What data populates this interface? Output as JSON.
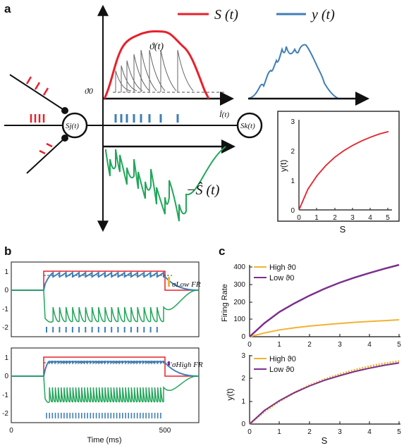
{
  "colors": {
    "red": "#e8202a",
    "blue": "#3f7eb6",
    "green": "#22a65a",
    "orange": "#f2b233",
    "purple": "#7b2f8c",
    "black": "#111111"
  },
  "panel_a": {
    "label": "a",
    "legend_S": "S (t)",
    "legend_y": "y (t)",
    "theta_t": "ϑ(t)",
    "theta0": "ϑ0",
    "neuron_j": "Sj(t)",
    "neuron_k": "Sk(t)",
    "input_current": "Î(t)",
    "neg_S_hat": "−Ŝ (t)",
    "inset": {
      "ylabel": "y(t)",
      "xlabel": "S",
      "xticks": [
        "0",
        "1",
        "2",
        "3",
        "4",
        "5"
      ],
      "yticks": [
        "0",
        "1",
        "2",
        "3"
      ]
    }
  },
  "panel_b": {
    "label": "b",
    "yticks": [
      "1",
      "0",
      "-1",
      "-2"
    ],
    "sigma_low": "σLow FR",
    "sigma_high": "σHigh FR",
    "xticks": [
      "0",
      "500"
    ],
    "xlabel": "Time (ms)"
  },
  "panel_c": {
    "label": "c",
    "top": {
      "ylabel": "Firing Rate",
      "yticks": [
        "0",
        "100",
        "200",
        "300",
        "400"
      ],
      "xticks": [
        "0",
        "1",
        "2",
        "3",
        "4",
        "5"
      ],
      "legend": [
        "High ϑ0",
        "Low ϑ0"
      ]
    },
    "bottom": {
      "ylabel": "y(t)",
      "yticks": [
        "0",
        "1",
        "2",
        "3"
      ],
      "xticks": [
        "0",
        "1",
        "2",
        "3",
        "4",
        "5"
      ],
      "xlabel": "S",
      "legend": [
        "High ϑ0",
        "Low ϑ0"
      ]
    }
  },
  "chart_data": [
    {
      "type": "line",
      "x": [
        0,
        0.5,
        1,
        1.5,
        2,
        2.5,
        3,
        3.5,
        4,
        4.5,
        5
      ],
      "xlim": [
        0,
        5
      ],
      "ylim": [
        0,
        3
      ],
      "xlabel": "S",
      "ylabel": "y(t)",
      "series": [
        {
          "values": [
            0,
            0.7,
            1.15,
            1.5,
            1.78,
            2.0,
            2.18,
            2.33,
            2.46,
            2.57,
            2.65
          ]
        }
      ]
    },
    {
      "type": "line",
      "x": [
        0,
        0.5,
        1,
        1.5,
        2,
        2.5,
        3,
        3.5,
        4,
        4.5,
        5
      ],
      "xlim": [
        0,
        5
      ],
      "ylim": [
        0,
        420
      ],
      "ylabel": "Firing Rate",
      "series": [
        {
          "name": "High ϑ0",
          "values": [
            0,
            22,
            40,
            52,
            62,
            70,
            77,
            84,
            89,
            94,
            99
          ]
        },
        {
          "name": "Low ϑ0",
          "values": [
            0,
            80,
            145,
            195,
            240,
            280,
            315,
            345,
            372,
            397,
            420
          ]
        }
      ]
    },
    {
      "type": "line",
      "x": [
        0,
        0.5,
        1,
        1.5,
        2,
        2.5,
        3,
        3.5,
        4,
        4.5,
        5
      ],
      "xlim": [
        0,
        5
      ],
      "ylim": [
        0,
        3
      ],
      "xlabel": "S",
      "ylabel": "y(t)",
      "series": [
        {
          "name": "High ϑ0",
          "values": [
            0,
            0.55,
            1.0,
            1.38,
            1.7,
            1.96,
            2.18,
            2.37,
            2.53,
            2.66,
            2.76
          ]
        },
        {
          "name": "Low ϑ0",
          "values": [
            0,
            0.6,
            1.03,
            1.38,
            1.67,
            1.92,
            2.12,
            2.3,
            2.45,
            2.58,
            2.68
          ]
        }
      ]
    }
  ]
}
